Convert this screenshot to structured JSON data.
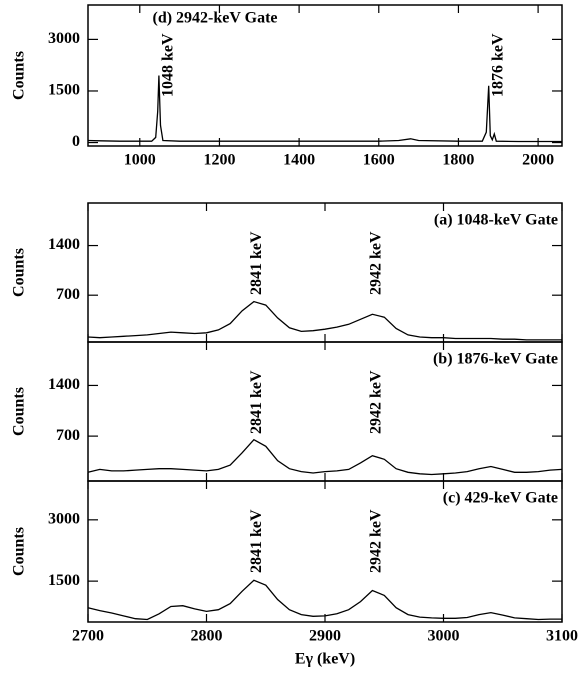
{
  "chart_data": [
    {
      "type": "line",
      "title": "(d) 2942-keV Gate",
      "y_label": "Counts",
      "x": [
        870,
        900,
        950,
        1000,
        1030,
        1040,
        1045,
        1048,
        1052,
        1058,
        1100,
        1200,
        1300,
        1400,
        1500,
        1600,
        1650,
        1680,
        1700,
        1800,
        1860,
        1870,
        1876,
        1880,
        1885,
        1890,
        1895,
        1950,
        2000,
        2060
      ],
      "values": [
        60,
        50,
        40,
        40,
        40,
        150,
        900,
        1950,
        500,
        60,
        40,
        40,
        40,
        40,
        40,
        40,
        60,
        110,
        60,
        40,
        40,
        300,
        1650,
        200,
        80,
        250,
        40,
        30,
        30,
        30
      ],
      "color": "#000000",
      "xlim": [
        870,
        2060
      ],
      "xticks": [
        1000,
        1200,
        1400,
        1600,
        1800,
        2000
      ],
      "ylim": [
        -100,
        4000
      ],
      "yticks": [
        0,
        1500,
        3000
      ],
      "annotations": [
        {
          "text": "1048 keV",
          "x": 1048,
          "color": "#000000"
        },
        {
          "text": "1876 keV",
          "x": 1876,
          "color": "#000000"
        }
      ]
    },
    {
      "type": "line",
      "title": "(a) 1048-keV Gate",
      "y_label": "Counts",
      "x": [
        2700,
        2710,
        2720,
        2730,
        2740,
        2750,
        2760,
        2770,
        2780,
        2790,
        2800,
        2810,
        2820,
        2830,
        2840,
        2850,
        2860,
        2870,
        2880,
        2890,
        2900,
        2910,
        2920,
        2930,
        2940,
        2950,
        2960,
        2970,
        2980,
        2990,
        3000,
        3010,
        3020,
        3030,
        3040,
        3050,
        3060,
        3070,
        3080,
        3090,
        3100
      ],
      "values": [
        110,
        100,
        110,
        120,
        130,
        140,
        160,
        180,
        170,
        160,
        170,
        210,
        300,
        480,
        610,
        560,
        380,
        240,
        190,
        200,
        220,
        250,
        290,
        360,
        430,
        390,
        230,
        140,
        110,
        100,
        100,
        90,
        90,
        90,
        90,
        80,
        80,
        70,
        70,
        70,
        70
      ],
      "color": "#000000",
      "xlim": [
        2700,
        3100
      ],
      "xticks": [
        2700,
        2800,
        2900,
        3000,
        3100
      ],
      "ylim": [
        40,
        2000
      ],
      "yticks": [
        700,
        1400
      ],
      "annotations": [
        {
          "text": "2841 keV",
          "x": 2841,
          "color": "#000000"
        },
        {
          "text": "2942 keV",
          "x": 2942,
          "color": "#ff0000"
        }
      ]
    },
    {
      "type": "line",
      "title": "(b) 1876-keV Gate",
      "y_label": "Counts",
      "x": [
        2700,
        2710,
        2720,
        2730,
        2740,
        2750,
        2760,
        2770,
        2780,
        2790,
        2800,
        2810,
        2820,
        2830,
        2840,
        2850,
        2860,
        2870,
        2880,
        2890,
        2900,
        2910,
        2920,
        2930,
        2940,
        2950,
        2960,
        2970,
        2980,
        2990,
        3000,
        3010,
        3020,
        3030,
        3040,
        3050,
        3060,
        3070,
        3080,
        3090,
        3100
      ],
      "values": [
        200,
        240,
        220,
        220,
        230,
        240,
        250,
        250,
        240,
        230,
        220,
        240,
        300,
        470,
        650,
        560,
        360,
        250,
        210,
        190,
        210,
        220,
        240,
        330,
        430,
        380,
        250,
        200,
        180,
        170,
        180,
        190,
        210,
        250,
        280,
        240,
        200,
        200,
        210,
        230,
        240
      ],
      "color": "#000000",
      "xlim": [
        2700,
        3100
      ],
      "xticks": [
        2700,
        2800,
        2900,
        3000,
        3100
      ],
      "ylim": [
        80,
        2000
      ],
      "yticks": [
        700,
        1400
      ],
      "annotations": [
        {
          "text": "2841 keV",
          "x": 2841,
          "color": "#000000"
        },
        {
          "text": "2942 keV",
          "x": 2942,
          "color": "#ff0000"
        }
      ]
    },
    {
      "type": "line",
      "title": "(c) 429-keV Gate",
      "y_label": "Counts",
      "x_label": "Eγ (keV)",
      "x": [
        2700,
        2710,
        2720,
        2730,
        2740,
        2750,
        2760,
        2770,
        2780,
        2790,
        2800,
        2810,
        2820,
        2830,
        2840,
        2850,
        2860,
        2870,
        2880,
        2890,
        2900,
        2910,
        2920,
        2930,
        2940,
        2950,
        2960,
        2970,
        2980,
        2990,
        3000,
        3010,
        3020,
        3030,
        3040,
        3050,
        3060,
        3070,
        3080,
        3090,
        3100
      ],
      "values": [
        850,
        780,
        720,
        650,
        580,
        560,
        700,
        880,
        900,
        820,
        760,
        800,
        950,
        1250,
        1520,
        1400,
        1050,
        800,
        680,
        640,
        650,
        700,
        800,
        1000,
        1270,
        1150,
        850,
        680,
        620,
        600,
        590,
        590,
        610,
        680,
        730,
        670,
        600,
        580,
        560,
        570,
        570
      ],
      "color": "#000000",
      "xlim": [
        2700,
        3100
      ],
      "xticks": [
        2700,
        2800,
        2900,
        3000,
        3100
      ],
      "ylim": [
        500,
        3950
      ],
      "yticks": [
        1500,
        3000
      ],
      "annotations": [
        {
          "text": "2841 keV",
          "x": 2841,
          "color": "#000000"
        },
        {
          "text": "2942 keV",
          "x": 2942,
          "color": "#ff0000"
        }
      ]
    }
  ]
}
